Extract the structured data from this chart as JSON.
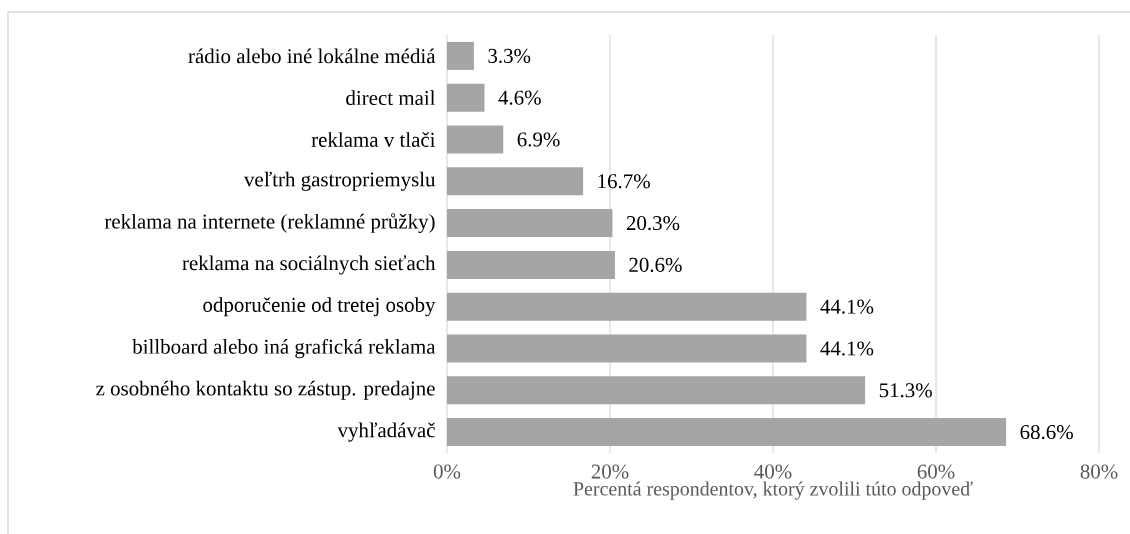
{
  "chart_data": {
    "type": "bar",
    "orientation": "horizontal",
    "xlabel": "Percentá respondentov, ktorý zvolili túto odpoveď",
    "categories": [
      "rádio alebo iné lokálne médiá",
      "direct mail",
      "reklama v tlači",
      "veľtrh gastropriemyslu",
      "reklama na internete (reklamné průžky)",
      "reklama na sociálnych sieťach",
      "odporučenie od tretej osoby",
      "billboard alebo iná grafická reklama",
      "z osobného kontaktu so zástup. predajne",
      "vyhľadávač"
    ],
    "values": [
      3.3,
      4.6,
      6.9,
      16.7,
      20.3,
      20.6,
      44.1,
      44.1,
      51.3,
      68.6
    ],
    "value_labels": [
      "3.3%",
      "4.6%",
      "6.9%",
      "16.7%",
      "20.3%",
      "20.6%",
      "44.1%",
      "44.1%",
      "51.3%",
      "68.6%"
    ],
    "color": "#a5a5a5",
    "xlim": [
      0,
      80
    ],
    "xticks": [
      {
        "value": 0,
        "label": "0%"
      },
      {
        "value": 20,
        "label": "20%"
      },
      {
        "value": 40,
        "label": "40%"
      },
      {
        "value": 60,
        "label": "60%"
      },
      {
        "value": 80,
        "label": "80%"
      }
    ],
    "grid": "x"
  }
}
